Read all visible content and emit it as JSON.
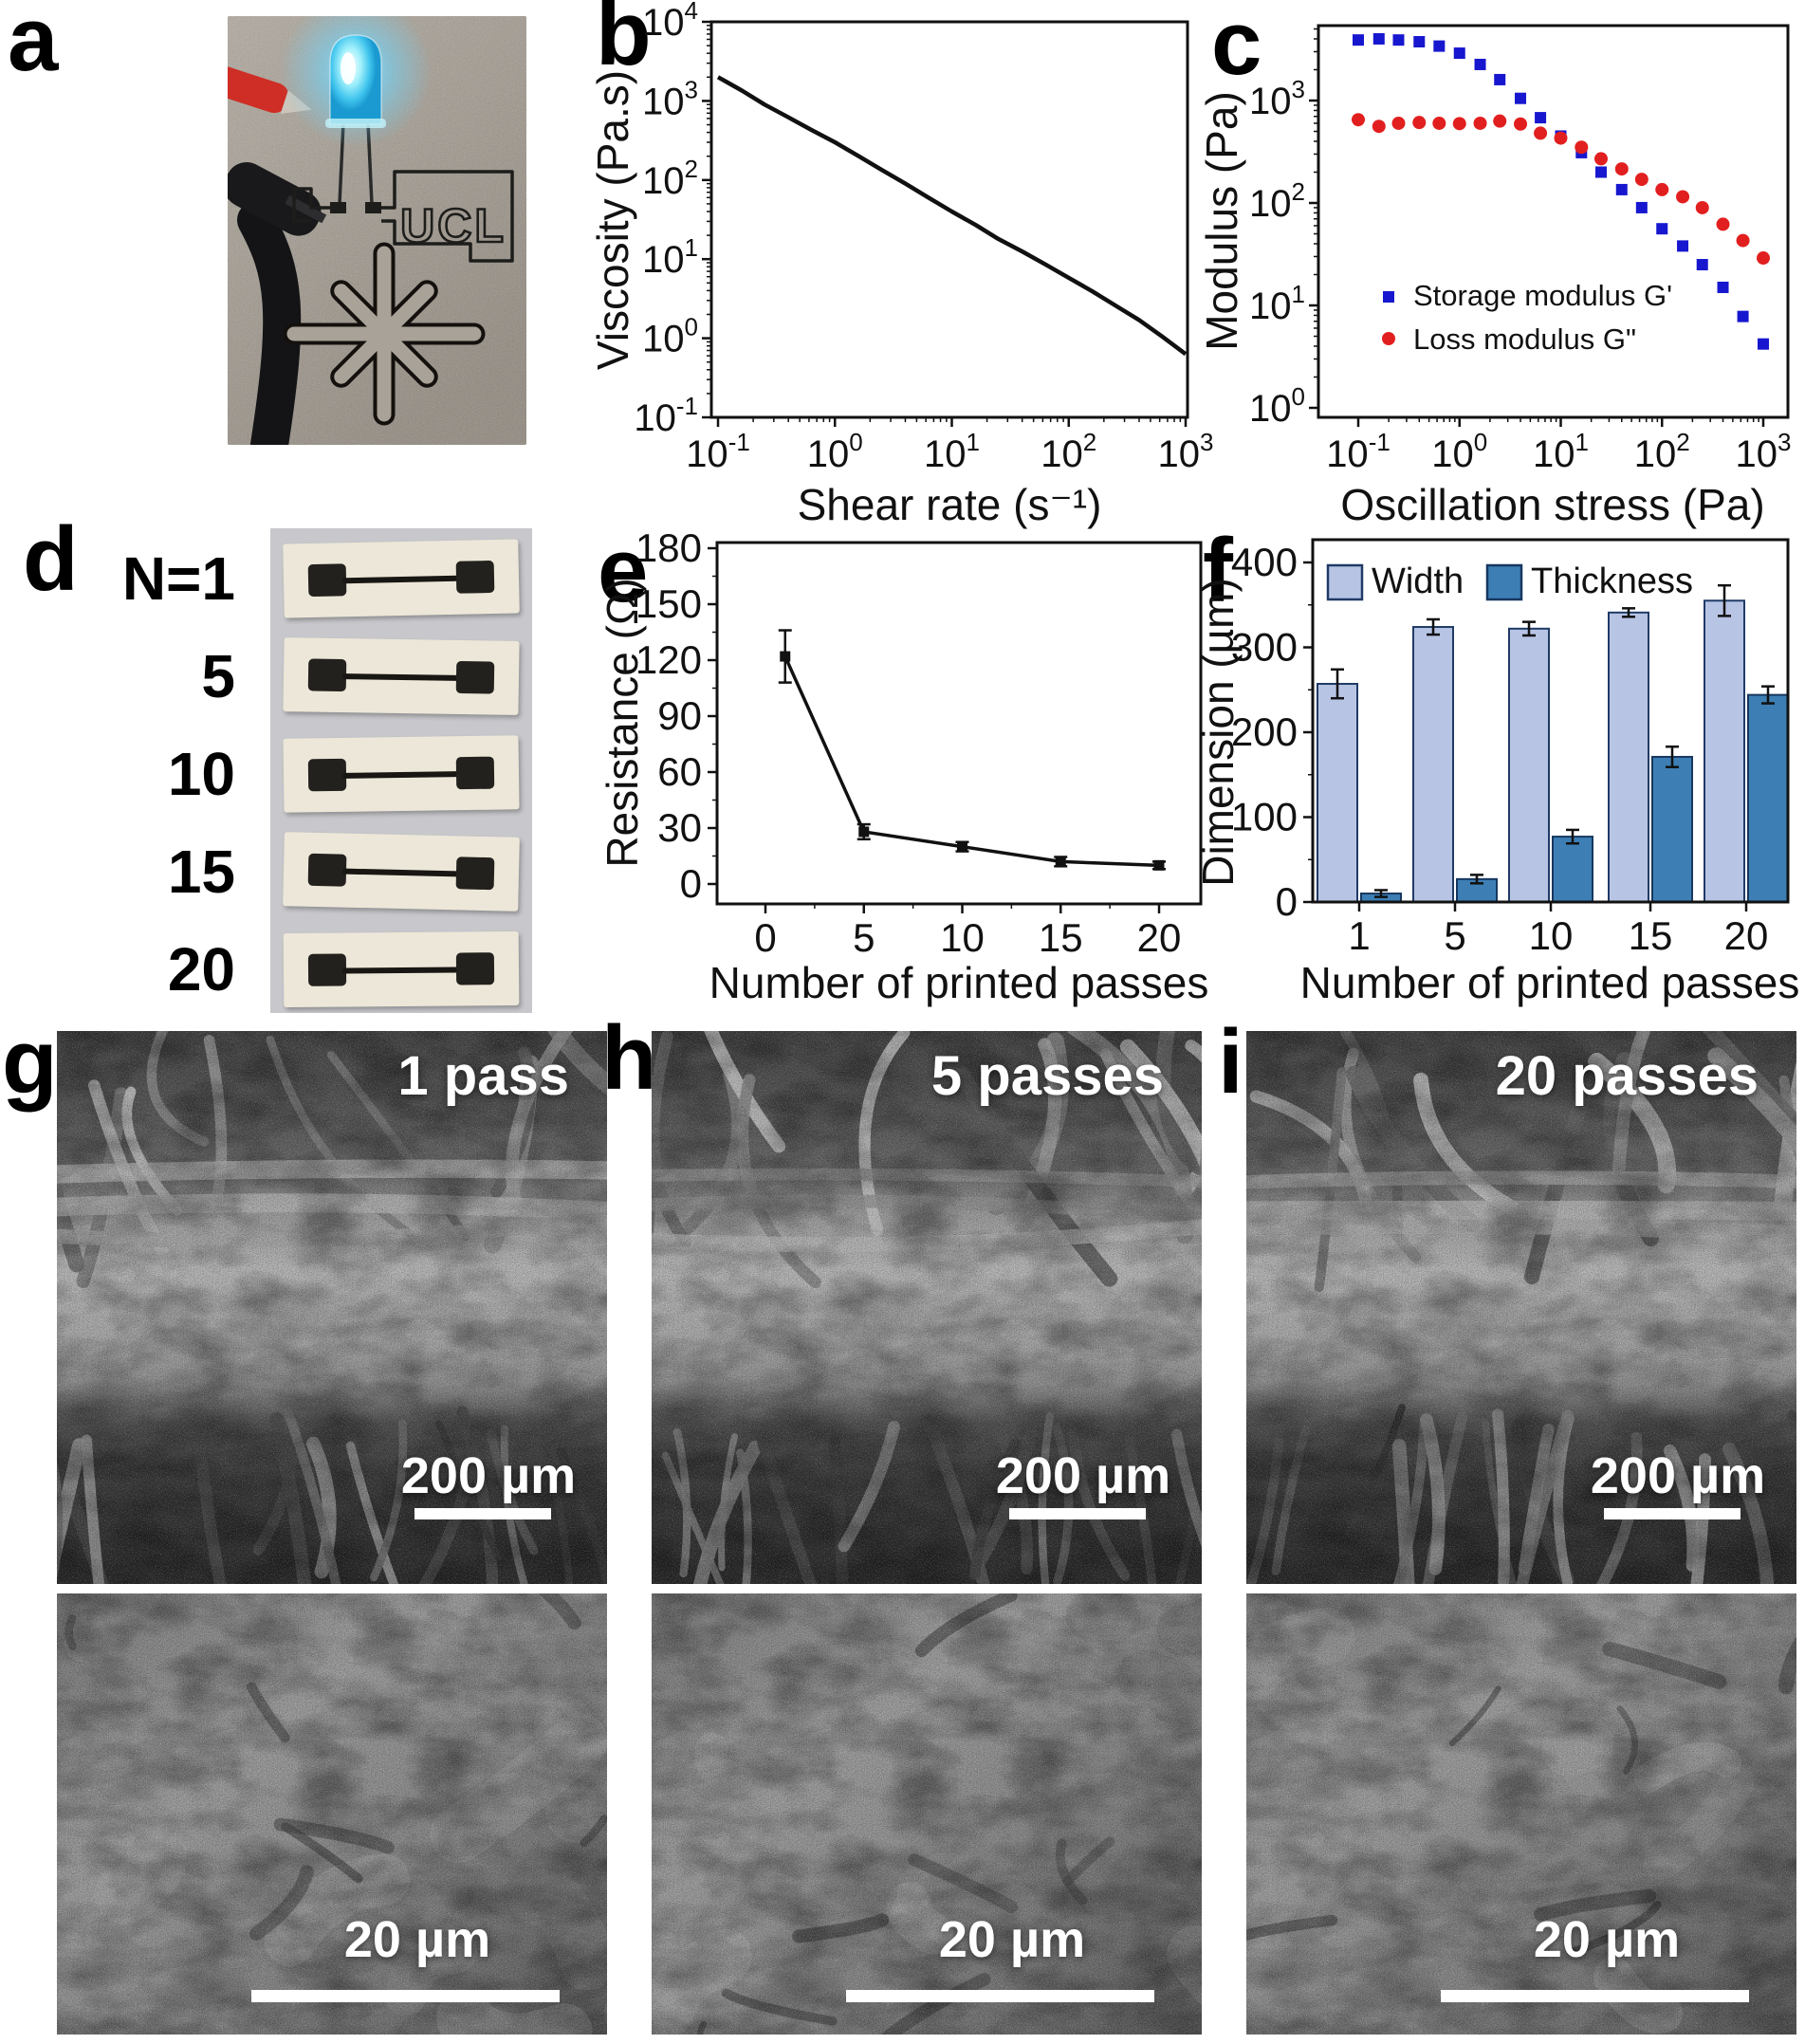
{
  "figure": {
    "letters": [
      "a",
      "b",
      "c",
      "d",
      "e",
      "f",
      "g",
      "h",
      "i"
    ]
  },
  "panel_a": {
    "logo_text": "UCL"
  },
  "panel_d": {
    "labels": [
      "N=1",
      "5",
      "10",
      "15",
      "20"
    ]
  },
  "sem": {
    "pass_labels": [
      "1 pass",
      "5 passes",
      "20 passes"
    ],
    "scale_top": "200 µm",
    "scale_bottom": "20 µm"
  },
  "chart_data": [
    {
      "id": "viscosity",
      "panel": "b",
      "type": "line",
      "xlabel": "Shear rate (s⁻¹)",
      "ylabel": "Viscosity (Pa.s)",
      "xscale": "log",
      "yscale": "log",
      "xlim": [
        0.1,
        1000
      ],
      "ylim": [
        0.1,
        10000
      ],
      "x": [
        0.1,
        0.16,
        0.25,
        0.4,
        0.63,
        1,
        1.6,
        2.5,
        4,
        6.3,
        10,
        16,
        25,
        40,
        63,
        100,
        160,
        250,
        400,
        630,
        1000
      ],
      "y": [
        2000,
        1350,
        900,
        620,
        430,
        300,
        200,
        135,
        90,
        60,
        40,
        27,
        18,
        12.5,
        8.6,
        5.8,
        3.9,
        2.6,
        1.7,
        1.05,
        0.63
      ],
      "line_color": "#111111",
      "grid": false
    },
    {
      "id": "modulus",
      "panel": "c",
      "type": "scatter",
      "xlabel": "Oscillation stress (Pa)",
      "ylabel": "Modulus (Pa)",
      "xscale": "log",
      "yscale": "log",
      "xlim": [
        0.1,
        1000
      ],
      "ylim": [
        1,
        5000
      ],
      "x": [
        0.1,
        0.16,
        0.25,
        0.4,
        0.63,
        1,
        1.6,
        2.5,
        4,
        6.3,
        10,
        16,
        25,
        40,
        63,
        100,
        160,
        250,
        400,
        630,
        1000
      ],
      "series": [
        {
          "name": "Storage modulus G'",
          "marker": "square",
          "color": "#1717cf",
          "y": [
            3900,
            4000,
            3900,
            3750,
            3400,
            2900,
            2250,
            1600,
            1050,
            680,
            450,
            310,
            200,
            135,
            90,
            56,
            38,
            25,
            15,
            7.8,
            4.2
          ]
        },
        {
          "name": "Loss modulus G\"",
          "marker": "circle",
          "color": "#e21f1f",
          "y": [
            650,
            560,
            600,
            610,
            600,
            595,
            600,
            630,
            590,
            480,
            430,
            350,
            270,
            215,
            170,
            135,
            115,
            90,
            62,
            43,
            29
          ]
        }
      ],
      "legend_position": "inside-bottom-left",
      "grid": false
    },
    {
      "id": "resistance",
      "panel": "e",
      "type": "line",
      "xlabel": "Number of printed passes",
      "ylabel": "Resistance (Ω)",
      "xscale": "linear",
      "yscale": "linear",
      "x": [
        1,
        5,
        10,
        15,
        20
      ],
      "y": [
        122,
        28,
        20,
        12,
        10
      ],
      "yerr": [
        14,
        4,
        2.5,
        2.5,
        2
      ],
      "xticks": [
        0,
        5,
        10,
        15,
        20
      ],
      "yticks": [
        0,
        30,
        60,
        90,
        120,
        150,
        180
      ],
      "xlim": [
        -2.5,
        22
      ],
      "ylim": [
        -10,
        185
      ],
      "line_color": "#111111",
      "grid": false
    },
    {
      "id": "dimension",
      "panel": "f",
      "type": "bar",
      "xlabel": "Number of printed passes",
      "ylabel": "Dimension (µm)",
      "categories": [
        "1",
        "5",
        "10",
        "15",
        "20"
      ],
      "series": [
        {
          "name": "Width",
          "color": "#b8c4e4",
          "edge": "#1f3b66",
          "values": [
            257,
            324,
            322,
            341,
            355
          ],
          "errors": [
            17,
            9,
            8,
            5,
            18
          ]
        },
        {
          "name": "Thickness",
          "color": "#3d7fb5",
          "edge": "#17375e",
          "values": [
            10,
            27,
            77,
            171,
            244
          ],
          "errors": [
            4,
            5,
            8,
            12,
            10
          ]
        }
      ],
      "yticks": [
        0,
        100,
        200,
        300,
        400
      ],
      "ylim": [
        0,
        427
      ],
      "legend_position": "inside-top-left",
      "grid": false
    }
  ]
}
